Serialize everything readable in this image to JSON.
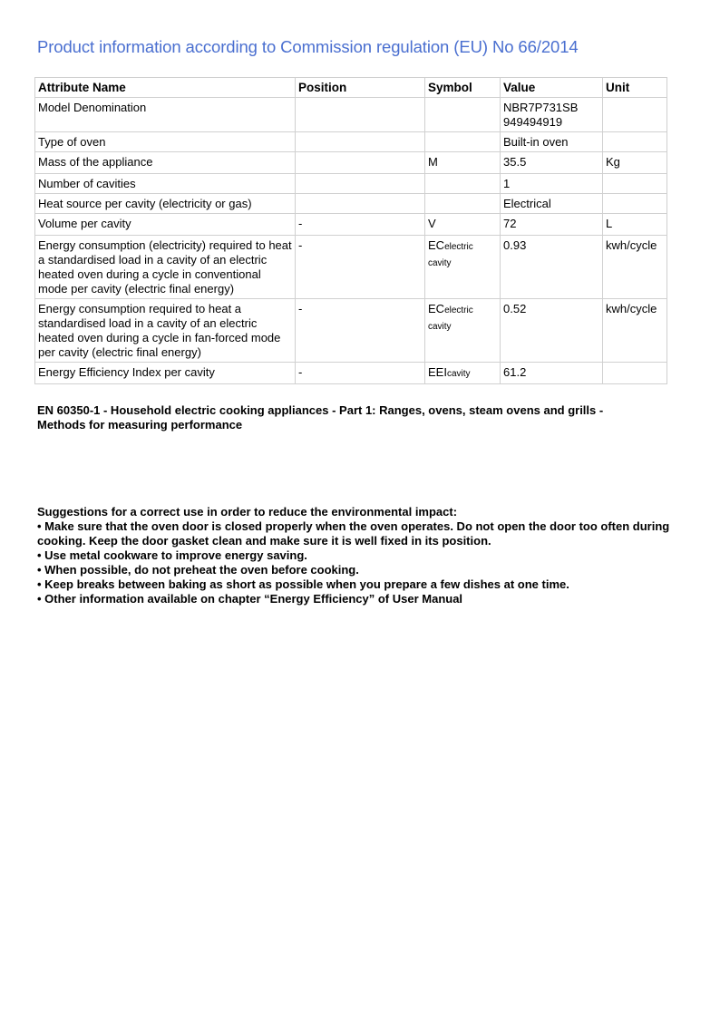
{
  "title": "Product information according to Commission regulation (EU) No 66/2014",
  "table": {
    "headers": [
      "Attribute Name",
      "Position",
      "Symbol",
      "Value",
      "Unit"
    ],
    "rows": [
      {
        "attribute": "Model Denomination",
        "position": "",
        "symbol": "",
        "symbol_sub": "",
        "value": "NBR7P731SB",
        "value2": "949494919",
        "unit": ""
      },
      {
        "attribute": "Type of oven",
        "position": "",
        "symbol": "",
        "symbol_sub": "",
        "value": "Built-in oven",
        "value2": "",
        "unit": ""
      },
      {
        "attribute": "Mass of the appliance",
        "position": "",
        "symbol": "M",
        "symbol_sub": "",
        "value": "35.5",
        "value2": "",
        "unit": "Kg"
      },
      {
        "attribute": "Number of cavities",
        "position": "",
        "symbol": "",
        "symbol_sub": "",
        "value": "1",
        "value2": "",
        "unit": ""
      },
      {
        "attribute": "Heat source per cavity (electricity or gas)",
        "position": "",
        "symbol": "",
        "symbol_sub": "",
        "value": "Electrical",
        "value2": "",
        "unit": ""
      },
      {
        "attribute": "Volume per cavity",
        "position": "-",
        "symbol": "V",
        "symbol_sub": "",
        "value": "72",
        "value2": "",
        "unit": "L"
      },
      {
        "attribute": "Energy consumption (electricity) required to heat a standardised load in a cavity of an electric heated oven during a cycle in conventional mode per cavity (electric final energy)",
        "position": "-",
        "symbol": "EC",
        "symbol_sub": "electric cavity",
        "value": "0.93",
        "value2": "",
        "unit": "kwh/cycle"
      },
      {
        "attribute": "Energy consumption required to heat a standardised load in a cavity of an electric heated oven during a cycle in fan-forced mode per cavity (electric final energy)",
        "position": "-",
        "symbol": "EC",
        "symbol_sub": "electric cavity",
        "value": "0.52",
        "value2": "",
        "unit": "kwh/cycle"
      },
      {
        "attribute": "Energy Efficiency Index per cavity",
        "position": "-",
        "symbol": "EEI",
        "symbol_sub": "cavity",
        "value": "61.2",
        "value2": "",
        "unit": ""
      }
    ]
  },
  "standard": "EN 60350-1 - Household electric cooking appliances - Part 1: Ranges, ovens, steam ovens and grills - Methods for measuring performance",
  "suggestions": {
    "heading": "Suggestions for a correct use in order to reduce the environmental impact:",
    "items": [
      "• Make sure that the oven door is closed properly when the oven operates. Do not open the door too often during cooking. Keep the door gasket clean and make sure it is well fixed in its position.",
      "• Use metal cookware to improve energy saving.",
      "• When possible, do not preheat the oven before cooking.",
      "• Keep breaks between baking as short as possible when you prepare a few dishes at one time.",
      "• Other information available on chapter “Energy Efficiency” of User Manual"
    ]
  },
  "colors": {
    "title": "#4a6fd0",
    "border": "#d0d0d0"
  }
}
